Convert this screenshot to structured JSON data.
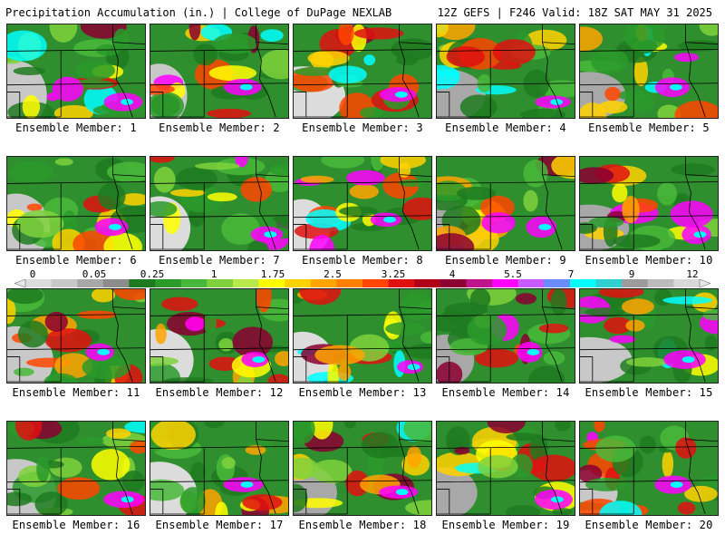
{
  "header": {
    "left": "Precipitation Accumulation (in.) | College of DuPage NEXLAB",
    "right": "12Z GEFS | F246 Valid: 18Z SAT MAY 31 2025"
  },
  "colorbar": {
    "tick_labels": [
      "0",
      "0.05",
      "0.25",
      "1",
      "1.75",
      "2.5",
      "3.25",
      "4",
      "5.5",
      "7",
      "9",
      "12"
    ],
    "colors": [
      "#dcdcdc",
      "#c8c8c8",
      "#a8a8a8",
      "#8c8c8c",
      "#1e7a1e",
      "#2a9a2a",
      "#49b83a",
      "#7fd23c",
      "#b8e84a",
      "#ffff00",
      "#ffd200",
      "#ffa500",
      "#ff7f00",
      "#ff4500",
      "#e01010",
      "#b00018",
      "#8b0030",
      "#c0148c",
      "#ff00ff",
      "#c85aff",
      "#6a8cff",
      "#00ffff",
      "#30d0d0",
      "#9c9c9c",
      "#bcbcbc",
      "#d8d8d8"
    ]
  },
  "panels": [
    {
      "label": "Ensemble Member: 1"
    },
    {
      "label": "Ensemble Member: 2"
    },
    {
      "label": "Ensemble Member: 3"
    },
    {
      "label": "Ensemble Member: 4"
    },
    {
      "label": "Ensemble Member: 5"
    },
    {
      "label": "Ensemble Member: 6"
    },
    {
      "label": "Ensemble Member: 7"
    },
    {
      "label": "Ensemble Member: 8"
    },
    {
      "label": "Ensemble Member: 9"
    },
    {
      "label": "Ensemble Member: 10"
    },
    {
      "label": "Ensemble Member: 11"
    },
    {
      "label": "Ensemble Member: 12"
    },
    {
      "label": "Ensemble Member: 13"
    },
    {
      "label": "Ensemble Member: 14"
    },
    {
      "label": "Ensemble Member: 15"
    },
    {
      "label": "Ensemble Member: 16"
    },
    {
      "label": "Ensemble Member: 17"
    },
    {
      "label": "Ensemble Member: 18"
    },
    {
      "label": "Ensemble Member: 19"
    },
    {
      "label": "Ensemble Member: 20"
    }
  ]
}
